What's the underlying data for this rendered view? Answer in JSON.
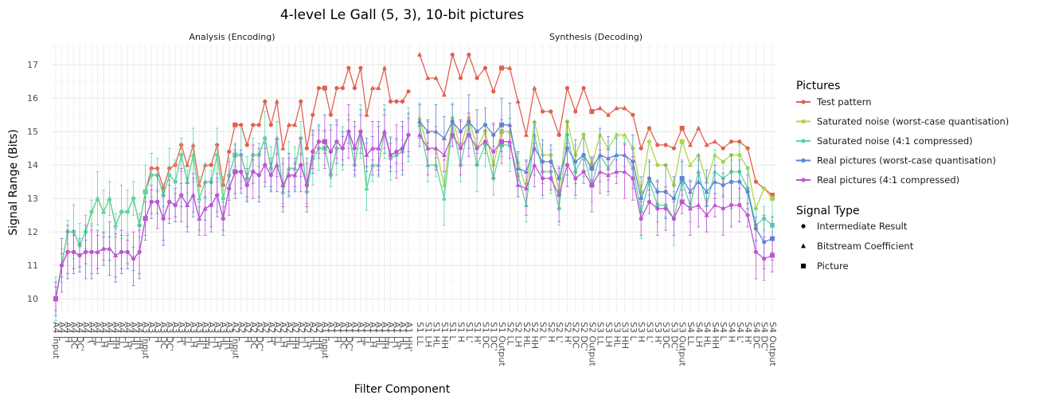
{
  "chart_data": {
    "type": "line",
    "title": "4-level Le Gall (5, 3), 10-bit pictures",
    "xlabel": "Filter Component",
    "ylabel": "Signal Range (Bits)",
    "ylim": [
      9.6,
      17.6
    ],
    "yticks": [
      10,
      11,
      12,
      13,
      14,
      15,
      16,
      17
    ],
    "grid": true,
    "legend_position": "right",
    "facets": [
      {
        "title": "Analysis (Encoding)",
        "categories": [
          "A4 Input",
          "A4 L",
          "A4 H",
          "A4 DC",
          "A4 DC'",
          "A4 L'",
          "A4 H'",
          "A4 LL",
          "A4 LH",
          "A4 HL",
          "A4 HH",
          "A4 LL'",
          "A4 LH'",
          "A4 HL'",
          "A4 HH'",
          "A3 Input",
          "A3 L",
          "A3 H",
          "A3 DC",
          "A3 DC'",
          "A3 L'",
          "A3 H'",
          "A3 LL",
          "A3 LH",
          "A3 HL",
          "A3 HH",
          "A3 LL'",
          "A3 LH'",
          "A3 HL'",
          "A3 HH'",
          "A2 Input",
          "A2 L",
          "A2 H",
          "A2 DC",
          "A2 DC'",
          "A2 L'",
          "A2 H'",
          "A2 LL",
          "A2 LH",
          "A2 HL",
          "A2 HH",
          "A2 LL'",
          "A2 LH'",
          "A2 HL'",
          "A2 HH'",
          "A1 Input",
          "A1 L",
          "A1 H",
          "A1 DC",
          "A1 DC'",
          "A1 L'",
          "A1 H'",
          "A1 LL",
          "A1 LH",
          "A1 HL",
          "A1 HH",
          "A1 LL'",
          "A1 LH'",
          "A1 HL'",
          "A1 HH'"
        ]
      },
      {
        "title": "Synthesis (Decoding)",
        "categories": [
          "S1 LL",
          "S1 LH",
          "S1 HL",
          "S1 HH",
          "S1 L",
          "S1 H",
          "S1 L'",
          "S1 H'",
          "S1 DC",
          "S1 DC'",
          "S1 Output",
          "S2 LL",
          "S2 LH",
          "S2 HL",
          "S2 HH",
          "S2 L",
          "S2 H",
          "S2 L'",
          "S2 H'",
          "S2 DC",
          "S2 DC'",
          "S2 Output",
          "S3 LL",
          "S3 LH",
          "S3 HL",
          "S3 HH",
          "S3 L",
          "S3 H",
          "S3 L'",
          "S3 H'",
          "S3 DC",
          "S3 DC'",
          "S3 Output",
          "S4 LL",
          "S4 LH",
          "S4 HL",
          "S4 HH",
          "S4 L",
          "S4 H",
          "S4 L'",
          "S4 H'",
          "S4 DC",
          "S4 DC'",
          "S4 Output"
        ]
      }
    ],
    "series": [
      {
        "name": "Test pattern",
        "color": "#e0614f",
        "analysis": [
          10,
          11,
          12,
          12,
          11.6,
          12,
          12.6,
          13,
          12.6,
          13,
          12.2,
          12.6,
          12.6,
          13,
          12.2,
          13.2,
          13.9,
          13.9,
          13.3,
          13.9,
          14,
          14.6,
          14,
          14.6,
          13.4,
          14,
          14,
          14.6,
          13.4,
          14.4,
          15.2,
          15.2,
          14.6,
          15.2,
          15.2,
          15.9,
          15.2,
          15.9,
          14.5,
          15.2,
          15.2,
          15.9,
          14.5,
          15.5,
          16.3,
          16.3,
          15.5,
          16.3,
          16.3,
          16.9,
          16.3,
          16.9,
          15.5,
          16.3,
          16.3,
          16.9,
          15.9,
          15.9,
          15.9,
          16.2
        ],
        "synthesis": [
          17.3,
          16.6,
          16.6,
          16.1,
          17.3,
          16.6,
          17.3,
          16.6,
          16.9,
          16.2,
          16.9,
          16.9,
          15.9,
          14.9,
          16.3,
          15.6,
          15.6,
          14.9,
          16.3,
          15.6,
          16.3,
          15.6,
          15.7,
          15.5,
          15.7,
          15.7,
          15.5,
          14.5,
          15.1,
          14.6,
          14.6,
          14.5,
          15.1,
          14.6,
          15.1,
          14.6,
          14.7,
          14.5,
          14.7,
          14.7,
          14.5,
          13.5,
          13.3,
          13.1
        ]
      },
      {
        "name": "Saturated noise (worst-case quantisation)",
        "color": "#b3d44a",
        "analysis": [
          10,
          11,
          12,
          12,
          11.6,
          12,
          12.6,
          13,
          12.6,
          13,
          12.2,
          12.6,
          12.6,
          13,
          12.2,
          13.2,
          13.7,
          13.7,
          13.1,
          13.7,
          13.5,
          14.3,
          13.5,
          14.3,
          13,
          13.5,
          13.5,
          14.3,
          13,
          13.7,
          14.3,
          14.3,
          13.6,
          14.3,
          14.3,
          14.8,
          13.9,
          14.8,
          13.2,
          13.9,
          13.9,
          14.8,
          13.2,
          14.2,
          14.5,
          14.5,
          13.7,
          14.5,
          14.5,
          15,
          14,
          15,
          13.3,
          14,
          14,
          15,
          14.2,
          14.3,
          14.4,
          14.9
        ],
        "synthesis": [
          15.4,
          14.5,
          14.5,
          13.4,
          15.4,
          14.5,
          15.4,
          14.5,
          15,
          14,
          15,
          15,
          14.1,
          13.3,
          15.3,
          14.3,
          14.3,
          13.2,
          15.3,
          14.3,
          14.9,
          14,
          14.9,
          14.5,
          14.9,
          14.9,
          14.5,
          13.2,
          14.7,
          14,
          14,
          13.4,
          14.7,
          14,
          14.3,
          13.5,
          14.3,
          14.1,
          14.3,
          14.3,
          13.9,
          12.7,
          13.3,
          13
        ]
      },
      {
        "name": "Saturated noise (4:1 compressed)",
        "color": "#5dd6a0",
        "analysis": [
          10,
          11,
          12,
          12,
          11.6,
          12,
          12.6,
          13,
          12.6,
          13,
          12.2,
          12.6,
          12.6,
          13,
          12.2,
          13.2,
          13.7,
          13.7,
          13.1,
          13.7,
          13.5,
          14.3,
          13.5,
          14.3,
          13,
          13.5,
          13.5,
          14.3,
          13,
          13.7,
          14.3,
          14.3,
          13.6,
          14.3,
          14.3,
          14.8,
          13.9,
          14.8,
          13.2,
          13.9,
          13.9,
          14.8,
          13.2,
          14.2,
          14.5,
          14.5,
          13.7,
          14.5,
          14.5,
          15,
          14,
          15,
          13.3,
          14,
          14,
          15,
          14.2,
          14.3,
          14.4,
          14.9
        ],
        "synthesis": [
          15.2,
          14,
          14,
          13,
          15.2,
          14,
          15.2,
          14,
          14.6,
          13.6,
          14.6,
          14.6,
          13.7,
          12.8,
          14.9,
          13.8,
          13.8,
          12.7,
          14.9,
          13.8,
          14.3,
          13.4,
          14.3,
          13.9,
          14.3,
          14.3,
          13.9,
          12.6,
          13.5,
          12.8,
          12.8,
          12.4,
          13.5,
          12.8,
          13.8,
          12.8,
          13.8,
          13.6,
          13.8,
          13.8,
          13.3,
          12.2,
          12.4,
          12.2
        ]
      },
      {
        "name": "Real pictures (worst-case quantisation)",
        "color": "#5a86d6",
        "analysis": [
          10,
          11,
          11.4,
          11.4,
          11.3,
          11.4,
          11.4,
          11.4,
          11.5,
          11.5,
          11.3,
          11.4,
          11.4,
          11.2,
          11.4,
          12.4,
          12.9,
          12.9,
          12.4,
          12.9,
          12.8,
          13.1,
          12.8,
          13.1,
          12.4,
          12.7,
          12.8,
          13.1,
          12.4,
          13.3,
          13.8,
          13.8,
          13.4,
          13.8,
          13.7,
          14,
          13.7,
          14,
          13.4,
          13.7,
          13.7,
          14,
          13.4,
          14.4,
          14.7,
          14.7,
          14.4,
          14.7,
          14.5,
          15,
          14.5,
          15,
          14.3,
          14.5,
          14.5,
          15,
          14.3,
          14.4,
          14.5,
          14.9
        ],
        "synthesis": [
          15.3,
          15,
          15,
          14.8,
          15.3,
          15,
          15.3,
          15,
          15.2,
          14.9,
          15.2,
          15.2,
          13.9,
          13.8,
          14.5,
          14.1,
          14.1,
          13.6,
          14.5,
          14.1,
          14.3,
          13.9,
          14.3,
          14.2,
          14.3,
          14.3,
          14.1,
          13,
          13.6,
          13.2,
          13.2,
          13,
          13.6,
          13.2,
          13.5,
          13.2,
          13.5,
          13.4,
          13.5,
          13.5,
          13.2,
          12.1,
          11.7,
          11.8
        ]
      },
      {
        "name": "Real pictures (4:1 compressed)",
        "color": "#c054d4",
        "analysis": [
          10,
          11,
          11.4,
          11.4,
          11.3,
          11.4,
          11.4,
          11.4,
          11.5,
          11.5,
          11.3,
          11.4,
          11.4,
          11.2,
          11.4,
          12.4,
          12.9,
          12.9,
          12.4,
          12.9,
          12.8,
          13.1,
          12.8,
          13.1,
          12.4,
          12.7,
          12.8,
          13.1,
          12.4,
          13.3,
          13.8,
          13.8,
          13.4,
          13.8,
          13.7,
          14,
          13.7,
          14,
          13.4,
          13.7,
          13.7,
          14,
          13.4,
          14.4,
          14.7,
          14.7,
          14.4,
          14.7,
          14.5,
          15,
          14.5,
          15,
          14.3,
          14.5,
          14.5,
          15,
          14.3,
          14.4,
          14.5,
          14.9
        ],
        "synthesis": [
          14.9,
          14.5,
          14.5,
          14.3,
          14.9,
          14.5,
          14.9,
          14.5,
          14.7,
          14.4,
          14.7,
          14.7,
          13.4,
          13.3,
          14,
          13.6,
          13.6,
          13.1,
          14,
          13.6,
          13.8,
          13.4,
          13.8,
          13.7,
          13.8,
          13.8,
          13.6,
          12.4,
          12.9,
          12.7,
          12.7,
          12.4,
          12.9,
          12.7,
          12.8,
          12.5,
          12.8,
          12.7,
          12.8,
          12.8,
          12.5,
          11.4,
          11.2,
          11.3
        ]
      }
    ],
    "legend": {
      "pictures_title": "Pictures",
      "pictures": [
        {
          "label": "Test pattern",
          "color": "#e0614f"
        },
        {
          "label": "Saturated noise (worst-case quantisation)",
          "color": "#b3d44a"
        },
        {
          "label": "Saturated noise (4:1 compressed)",
          "color": "#5dd6a0"
        },
        {
          "label": "Real pictures (worst-case quantisation)",
          "color": "#5a86d6"
        },
        {
          "label": "Real pictures (4:1 compressed)",
          "color": "#c054d4"
        }
      ],
      "signal_title": "Signal Type",
      "signals": [
        {
          "label": "Intermediate Result",
          "shape": "circle"
        },
        {
          "label": "Bitstream Coefficient",
          "shape": "triangle"
        },
        {
          "label": "Picture",
          "shape": "square"
        }
      ]
    }
  }
}
